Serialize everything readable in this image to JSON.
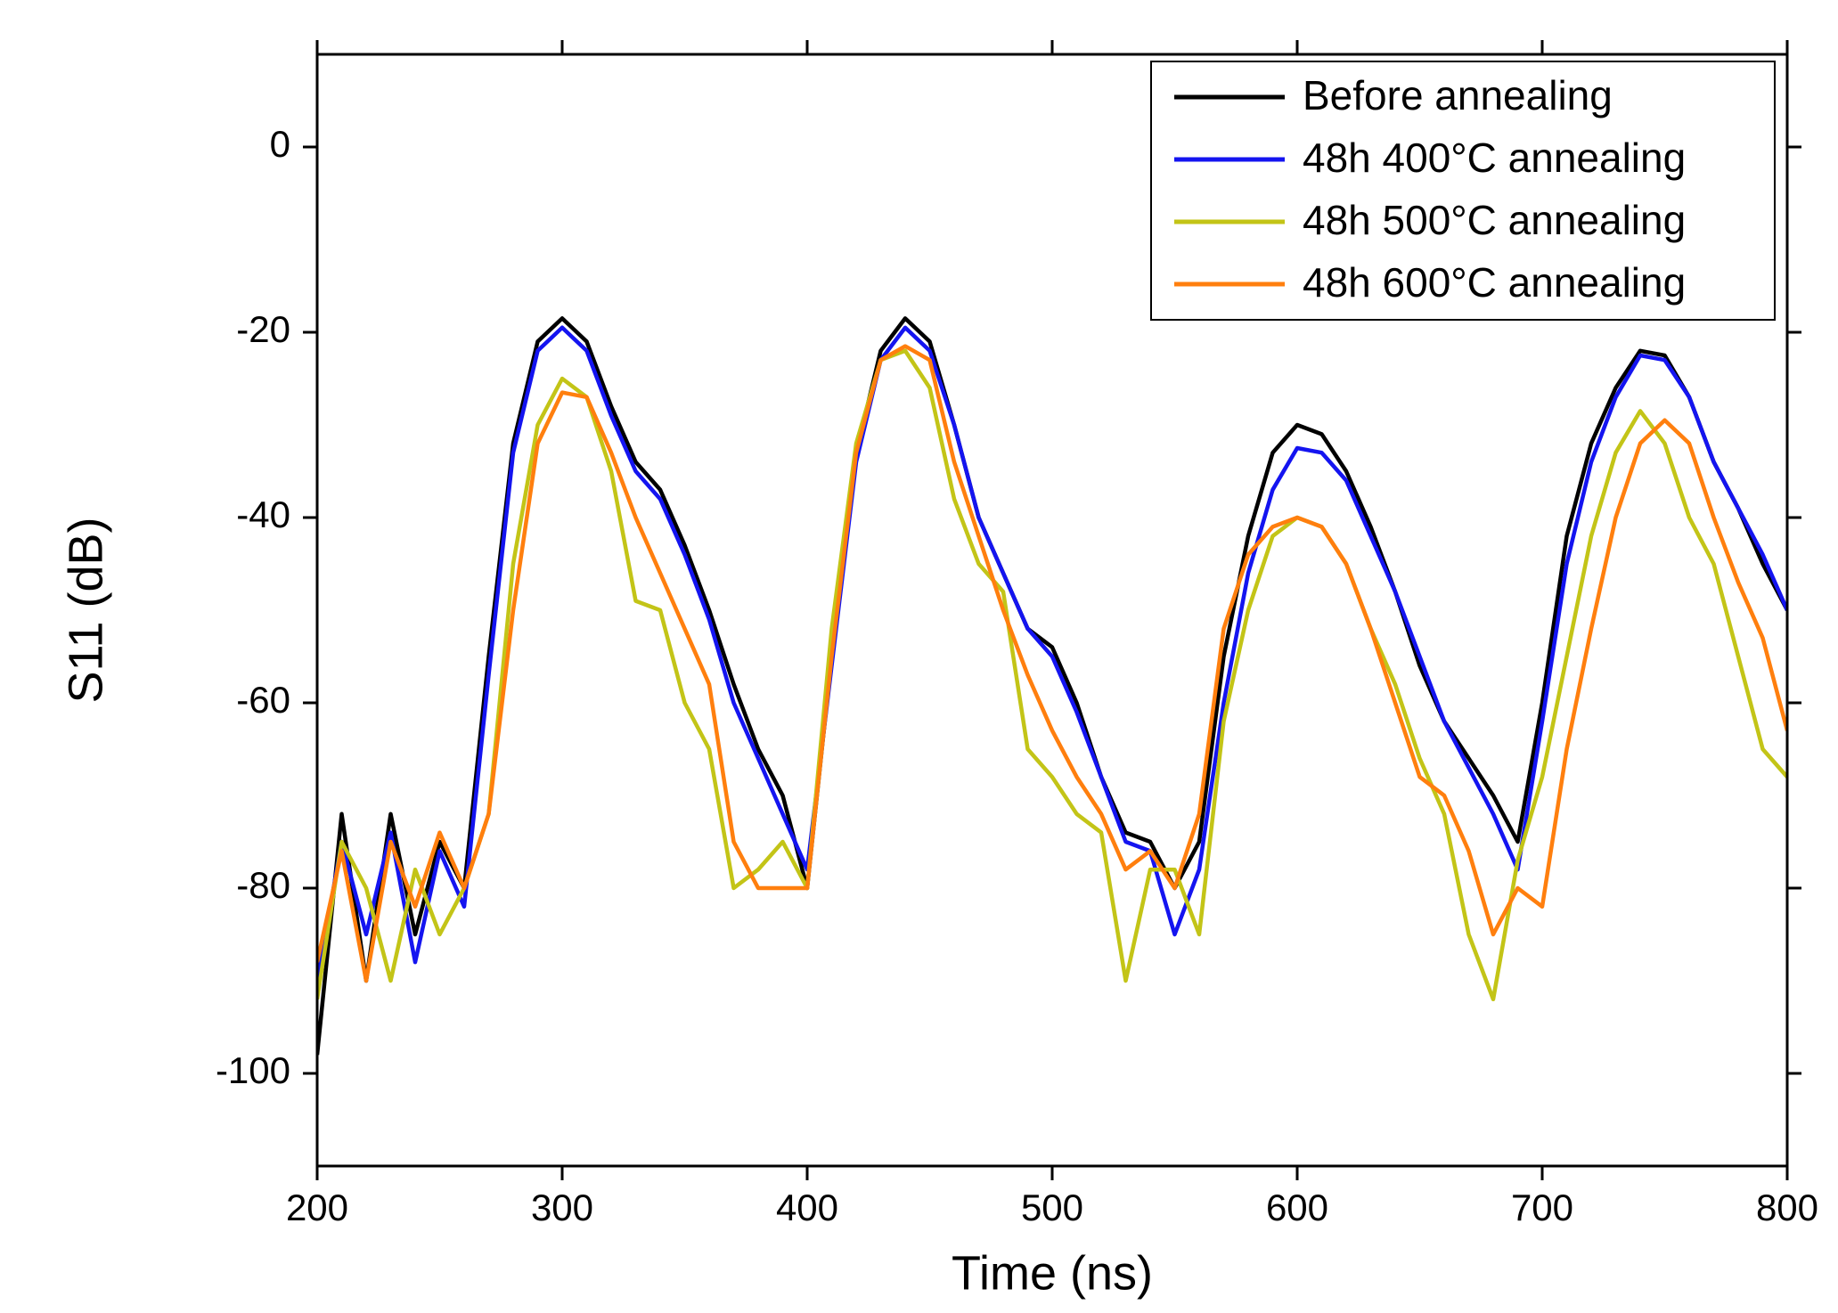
{
  "chart_data": {
    "type": "line",
    "x_label": "Time (ns)",
    "y_label": "S11 (dB)",
    "xlim": [
      200,
      800
    ],
    "xticks": [
      200,
      300,
      400,
      500,
      600,
      700,
      800
    ],
    "ylim": [
      -110,
      10
    ],
    "yticks": [
      -100,
      -80,
      -60,
      -40,
      -20,
      0
    ],
    "legend": "upper right",
    "x": [
      200,
      210,
      220,
      230,
      240,
      250,
      260,
      270,
      280,
      290,
      300,
      310,
      320,
      330,
      340,
      350,
      360,
      370,
      380,
      390,
      400,
      410,
      420,
      430,
      440,
      450,
      460,
      470,
      480,
      490,
      500,
      510,
      520,
      530,
      540,
      550,
      560,
      570,
      580,
      590,
      600,
      610,
      620,
      630,
      640,
      650,
      660,
      670,
      680,
      690,
      700,
      710,
      720,
      730,
      740,
      750,
      760,
      770,
      780,
      790,
      800
    ],
    "series": [
      {
        "name": "Before annealing",
        "color": "#000000",
        "values": [
          -98,
          -72,
          -90,
          -72,
          -85,
          -75,
          -80,
          -55,
          -32,
          -21,
          -18.5,
          -21,
          -28,
          -34,
          -37,
          -43,
          -50,
          -58,
          -65,
          -70,
          -80,
          -55,
          -33,
          -22,
          -18.5,
          -21,
          -30,
          -40,
          -46,
          -52,
          -54,
          -60,
          -68,
          -74,
          -75,
          -80,
          -75,
          -55,
          -42,
          -33,
          -30,
          -31,
          -35,
          -41,
          -48,
          -56,
          -62,
          -66,
          -70,
          -75,
          -60,
          -42,
          -32,
          -26,
          -22,
          -22.5,
          -27,
          -34,
          -39,
          -45,
          -50
        ]
      },
      {
        "name": "48h 400°C annealing",
        "color": "#1414f0",
        "values": [
          -90,
          -75,
          -85,
          -74,
          -88,
          -76,
          -82,
          -57,
          -33,
          -22,
          -19.5,
          -22,
          -29,
          -35,
          -38,
          -44,
          -51,
          -60,
          -66,
          -72,
          -78,
          -56,
          -34,
          -23,
          -19.5,
          -22,
          -30,
          -40,
          -46,
          -52,
          -55,
          -61,
          -68,
          -75,
          -76,
          -85,
          -78,
          -60,
          -46,
          -37,
          -32.5,
          -33,
          -36,
          -42,
          -48,
          -55,
          -62,
          -67,
          -72,
          -78,
          -62,
          -45,
          -34,
          -27,
          -22.5,
          -23,
          -27,
          -34,
          -39,
          -44,
          -50
        ]
      },
      {
        "name": "48h 500°C annealing",
        "color": "#c3c417",
        "values": [
          -92,
          -75,
          -80,
          -90,
          -78,
          -85,
          -80,
          -72,
          -45,
          -30,
          -25,
          -27,
          -35,
          -49,
          -50,
          -60,
          -65,
          -80,
          -78,
          -75,
          -80,
          -52,
          -32,
          -23,
          -22,
          -26,
          -38,
          -45,
          -48,
          -65,
          -68,
          -72,
          -74,
          -90,
          -78,
          -78,
          -85,
          -62,
          -50,
          -42,
          -40,
          -41,
          -45,
          -52,
          -58,
          -66,
          -72,
          -85,
          -92,
          -77,
          -68,
          -55,
          -42,
          -33,
          -28.5,
          -32,
          -40,
          -45,
          -55,
          -65,
          -68
        ]
      },
      {
        "name": "48h 600°C annealing",
        "color": "#ff7f0e",
        "values": [
          -88,
          -76,
          -90,
          -75,
          -82,
          -74,
          -80,
          -72,
          -50,
          -32,
          -26.5,
          -27,
          -33,
          -40,
          -46,
          -52,
          -58,
          -75,
          -80,
          -80,
          -80,
          -55,
          -33,
          -23,
          -21.5,
          -23,
          -34,
          -42,
          -50,
          -57,
          -63,
          -68,
          -72,
          -78,
          -76,
          -80,
          -72,
          -52,
          -44,
          -41,
          -40,
          -41,
          -45,
          -52,
          -60,
          -68,
          -70,
          -76,
          -85,
          -80,
          -82,
          -65,
          -52,
          -40,
          -32,
          -29.5,
          -32,
          -40,
          -47,
          -53,
          -63
        ]
      }
    ]
  }
}
